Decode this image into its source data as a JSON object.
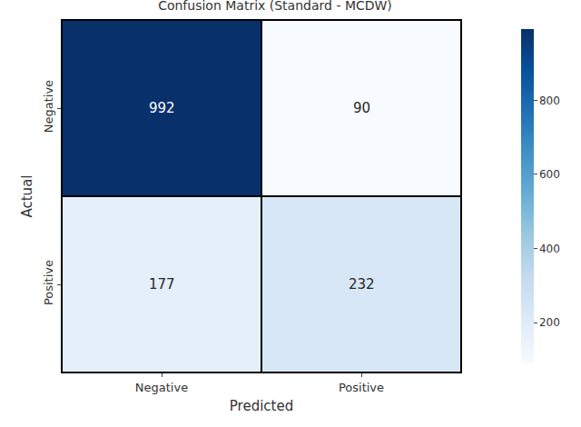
{
  "chart_data": {
    "type": "heatmap",
    "title": "Confusion Matrix (Standard - MCDW)",
    "x_label": "Predicted",
    "y_label": "Actual",
    "x": [
      "Negative",
      "Positive"
    ],
    "y": [
      "Negative",
      "Positive"
    ],
    "cells": [
      [
        992,
        90
      ],
      [
        177,
        232
      ]
    ],
    "colorbar_range": [
      90,
      992
    ],
    "colorbar_ticks": [
      200,
      400,
      600,
      800
    ],
    "data_labels": true
  }
}
